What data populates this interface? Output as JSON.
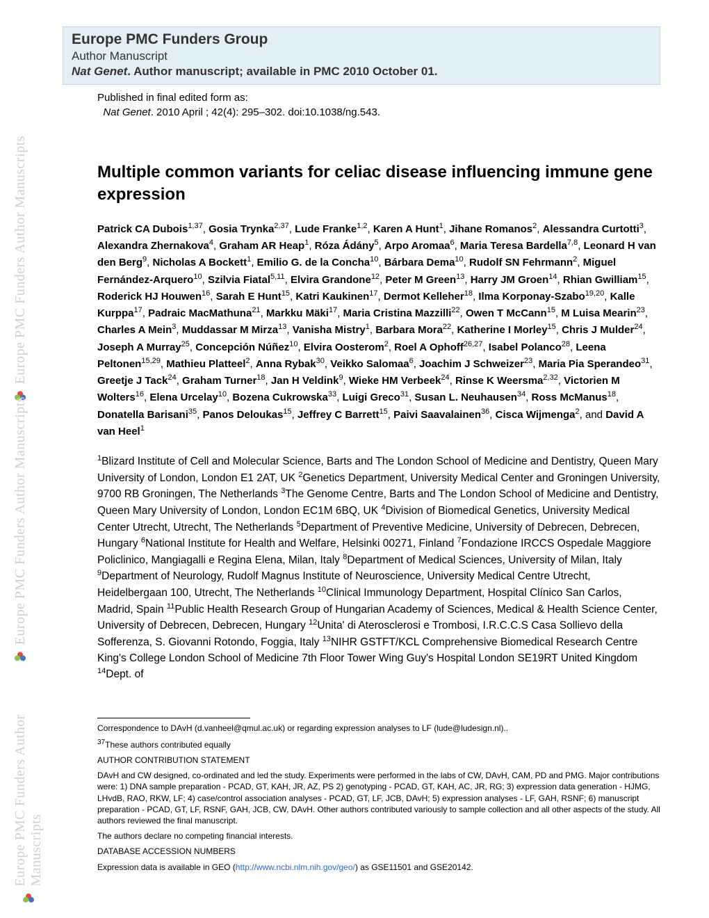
{
  "header": {
    "group": "Europe PMC Funders Group",
    "manuscript": "Author Manuscript",
    "journal_italic": "Nat Genet",
    "journal_rest": ". Author manuscript; available in PMC 2010 October 01."
  },
  "pub_info": {
    "line1": "Published in final edited form as:",
    "journal": "Nat Genet",
    "citation": ". 2010 April ; 42(4): 295–302. doi:10.1038/ng.543."
  },
  "title": "Multiple common variants for celiac disease influencing immune gene expression",
  "authors_html": "<b>Patrick CA Dubois</b><sup>1,37</sup>, <b>Gosia Trynka</b><sup>2,37</sup>, <b>Lude Franke</b><sup>1,2</sup>, <b>Karen A Hunt</b><sup>1</sup>, <b>Jihane Romanos</b><sup>2</sup>, <b>Alessandra Curtotti</b><sup>3</sup>, <b>Alexandra Zhernakova</b><sup>4</sup>, <b>Graham AR Heap</b><sup>1</sup>, <b>Róza Ádány</b><sup>5</sup>, <b>Arpo Aromaa</b><sup>6</sup>, <b>Maria Teresa Bardella</b><sup>7,8</sup>, <b>Leonard H van den Berg</b><sup>9</sup>, <b>Nicholas A Bockett</b><sup>1</sup>, <b>Emilio G. de la Concha</b><sup>10</sup>, <b>Bárbara Dema</b><sup>10</sup>, <b>Rudolf SN Fehrmann</b><sup>2</sup>, <b>Miguel Fernández-Arquero</b><sup>10</sup>, <b>Szilvia Fiatal</b><sup>5,11</sup>, <b>Elvira Grandone</b><sup>12</sup>, <b>Peter M Green</b><sup>13</sup>, <b>Harry JM Groen</b><sup>14</sup>, <b>Rhian Gwilliam</b><sup>15</sup>, <b>Roderick HJ Houwen</b><sup>16</sup>, <b>Sarah E Hunt</b><sup>15</sup>, <b>Katri Kaukinen</b><sup>17</sup>, <b>Dermot Kelleher</b><sup>18</sup>, <b>Ilma Korponay-Szabo</b><sup>19,20</sup>, <b>Kalle Kurppa</b><sup>17</sup>, <b>Padraic MacMathuna</b><sup>21</sup>, <b>Markku Mäki</b><sup>17</sup>, <b>Maria Cristina Mazzilli</b><sup>22</sup>, <b>Owen T McCann</b><sup>15</sup>, <b>M Luisa Mearin</b><sup>23</sup>, <b>Charles A Mein</b><sup>3</sup>, <b>Muddassar M Mirza</b><sup>13</sup>, <b>Vanisha Mistry</b><sup>1</sup>, <b>Barbara Mora</b><sup>22</sup>, <b>Katherine I Morley</b><sup>15</sup>, <b>Chris J Mulder</b><sup>24</sup>, <b>Joseph A Murray</b><sup>25</sup>, <b>Concepción Núñez</b><sup>10</sup>, <b>Elvira Oosterom</b><sup>2</sup>, <b>Roel A Ophoff</b><sup>26,27</sup>, <b>Isabel Polanco</b><sup>28</sup>, <b>Leena Peltonen</b><sup>15,29</sup>, <b>Mathieu Platteel</b><sup>2</sup>, <b>Anna Rybak</b><sup>30</sup>, <b>Veikko Salomaa</b><sup>6</sup>, <b>Joachim J Schweizer</b><sup>23</sup>, <b>Maria Pia Sperandeo</b><sup>31</sup>, <b>Greetje J Tack</b><sup>24</sup>, <b>Graham Turner</b><sup>18</sup>, <b>Jan H Veldink</b><sup>9</sup>, <b>Wieke HM Verbeek</b><sup>24</sup>, <b>Rinse K Weersma</b><sup>2,32</sup>, <b>Victorien M Wolters</b><sup>16</sup>, <b>Elena Urcelay</b><sup>10</sup>, <b>Bozena Cukrowska</b><sup>33</sup>, <b>Luigi Greco</b><sup>31</sup>, <b>Susan L. Neuhausen</b><sup>34</sup>, <b>Ross McManus</b><sup>18</sup>, <b>Donatella Barisani</b><sup>35</sup>, <b>Panos Deloukas</b><sup>15</sup>, <b>Jeffrey C Barrett</b><sup>15</sup>, <b>Paivi Saavalainen</b><sup>36</sup>, <b>Cisca Wijmenga</b><sup>2</sup>, and <b>David A van Heel</b><sup>1</sup>",
  "affiliations_html": "<sup>1</sup>Blizard Institute of Cell and Molecular Science, Barts and The London School of Medicine and Dentistry, Queen Mary University of London, London E1 2AT, UK <sup>2</sup>Genetics Department, University Medical Center and Groningen University, 9700 RB Groningen, The Netherlands <sup>3</sup>The Genome Centre, Barts and The London School of Medicine and Dentistry, Queen Mary University of London, London EC1M 6BQ, UK <sup>4</sup>Division of Biomedical Genetics, University Medical Center Utrecht, Utrecht, The Netherlands <sup>5</sup>Department of Preventive Medicine, University of Debrecen, Debrecen, Hungary <sup>6</sup>National Institute for Health and Welfare, Helsinki 00271, Finland <sup>7</sup>Fondazione IRCCS Ospedale Maggiore Policlinico, Mangiagalli e Regina Elena, Milan, Italy <sup>8</sup>Department of Medical Sciences, University of Milan, Italy <sup>9</sup>Department of Neurology, Rudolf Magnus Institute of Neuroscience, University Medical Centre Utrecht, Heidelbergaan 100, Utrecht, The Netherlands <sup>10</sup>Clinical Immunology Department, Hospital Clínico San Carlos, Madrid, Spain <sup>11</sup>Public Health Research Group of Hungarian Academy of Sciences, Medical & Health Science Center, University of Debrecen, Debrecen, Hungary <sup>12</sup>Unita' di Aterosclerosi e Trombosi, I.R.C.C.S Casa Sollievo della Sofferenza, S. Giovanni Rotondo, Foggia, Italy <sup>13</sup>NIHR GSTFT/KCL Comprehensive Biomedical Research Centre King's College London School of Medicine 7th Floor Tower Wing Guy's Hospital London SE19RT United Kingdom <sup>14</sup>Dept. of",
  "footnotes": {
    "correspondence": "Correspondence to DAvH (d.vanheel@qmul.ac.uk) or regarding expression analyses to LF (lude@ludesign.nl)..",
    "equal": "These authors contributed equally",
    "equal_sup": "37",
    "contrib_head": "AUTHOR CONTRIBUTION STATEMENT",
    "contrib_body": "DAvH and CW designed, co-ordinated and led the study. Experiments were performed in the labs of CW, DAvH, CAM, PD and PMG. Major contributions were: 1) DNA sample preparation - PCAD, GT, KAH, JR, AZ, PS 2) genotyping - PCAD, GT, KAH, AC, JR, RG; 3) expression data generation - HJMG, LHvdB, RAO, RKW, LF; 4) case/control association analyses - PCAD, GT, LF, JCB, DAvH; 5) expression analyses - LF, GAH, RSNF; 6) manuscript preparation - PCAD, GT, LF, RSNF, GAH, JCB, CW, DAvH. Other authors contributed variously to sample collection and all other aspects of the study. All authors reviewed the final manuscript.",
    "competing": "The authors declare no competing financial interests.",
    "db_head": "DATABASE ACCESSION NUMBERS",
    "db_prefix": "Expression data is available in GEO (",
    "db_link": "http://www.ncbi.nlm.nih.gov/geo/",
    "db_suffix": ") as GSE11501 and GSE20142."
  },
  "watermark": "Europe PMC Funders Author Manuscripts",
  "colors": {
    "header_bg": "#e3eef5",
    "header_border": "#c5d3de",
    "watermark_text": "#cfcfcf",
    "link": "#3366cc"
  }
}
